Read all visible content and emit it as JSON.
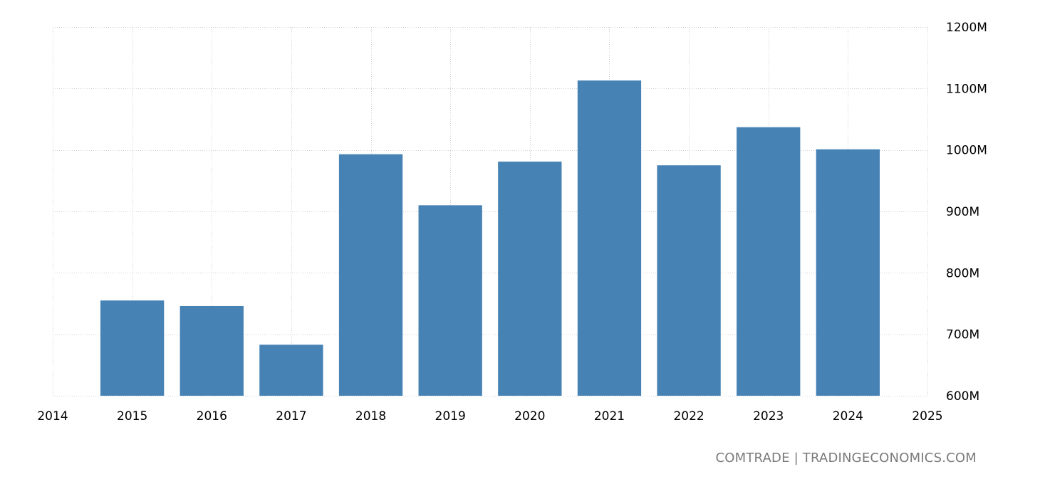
{
  "chart_data": {
    "type": "bar",
    "categories": [
      "2015",
      "2016",
      "2017",
      "2018",
      "2019",
      "2020",
      "2021",
      "2022",
      "2023",
      "2024"
    ],
    "values": [
      755,
      746,
      683,
      993,
      910,
      981,
      1113,
      975,
      1037,
      1001
    ],
    "value_unit": "M",
    "x_ticks": [
      "2014",
      "2015",
      "2016",
      "2017",
      "2018",
      "2019",
      "2020",
      "2021",
      "2022",
      "2023",
      "2024",
      "2025"
    ],
    "xlim": [
      2014,
      2025
    ],
    "y_ticks": [
      {
        "value": 600,
        "label": "600M"
      },
      {
        "value": 700,
        "label": "700M"
      },
      {
        "value": 800,
        "label": "800M"
      },
      {
        "value": 900,
        "label": "900M"
      },
      {
        "value": 1000,
        "label": "1000M"
      },
      {
        "value": 1100,
        "label": "1100M"
      },
      {
        "value": 1200,
        "label": "1200M"
      }
    ],
    "ylim": [
      600,
      1200
    ],
    "y_axis_side": "right",
    "grid": true,
    "bar_color": "#4682b4",
    "title": "",
    "xlabel": "",
    "ylabel": ""
  },
  "source": {
    "text": "COMTRADE | TRADINGECONOMICS.COM"
  }
}
